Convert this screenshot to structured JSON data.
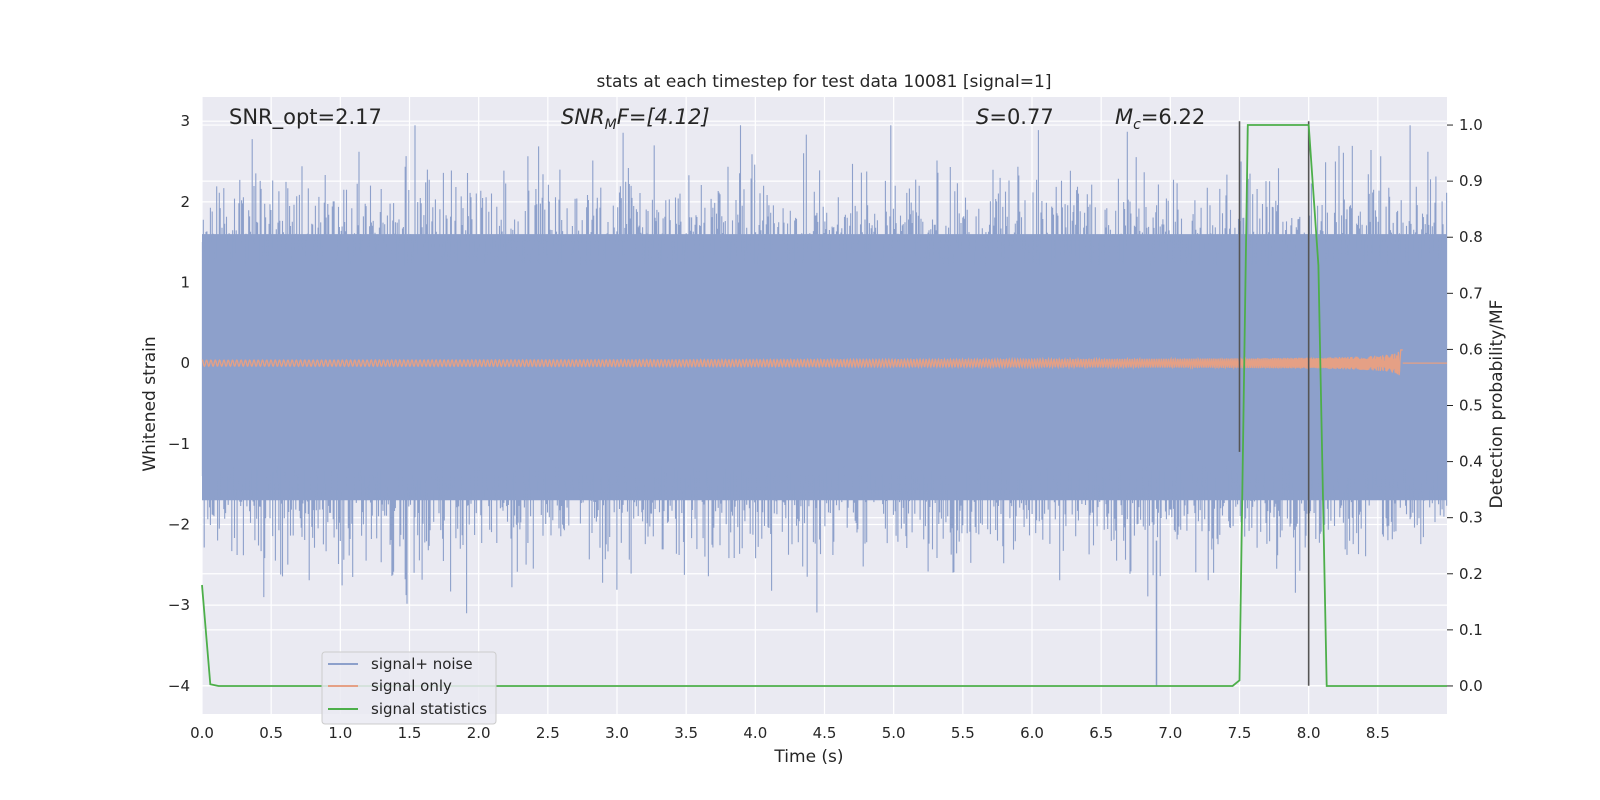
{
  "chart_data": {
    "type": "line",
    "title": "stats at each timestep for test data 10081 [signal=1]",
    "xlabel": "Time (s)",
    "ylabel_left": "Whitened strain",
    "ylabel_right": "Detection probability/MF",
    "xlim": [
      0.0,
      9.0
    ],
    "ylim_left": [
      -4.35,
      3.3
    ],
    "ylim_right": [
      -0.05,
      1.05
    ],
    "xticks": [
      "0.0",
      "0.5",
      "1.0",
      "1.5",
      "2.0",
      "2.5",
      "3.0",
      "3.5",
      "4.0",
      "4.5",
      "5.0",
      "5.5",
      "6.0",
      "6.5",
      "7.0",
      "7.5",
      "8.0",
      "8.5"
    ],
    "yticks_left": [
      "3",
      "2",
      "1",
      "0",
      "−1",
      "−2",
      "−3",
      "−4"
    ],
    "yticks_right": [
      "1.0",
      "0.9",
      "0.8",
      "0.7",
      "0.6",
      "0.5",
      "0.4",
      "0.3",
      "0.2",
      "0.1",
      "0.0"
    ],
    "grid": true,
    "legend_position": "lower-left",
    "annotations": {
      "snr_opt": "SNR_opt=2.17",
      "snr_mf_prefix": "SNR",
      "snr_mf_sub": "M",
      "snr_mf_suffix": "F=[4.12]",
      "s_var": "S",
      "s_val": "=0.77",
      "mc_var": "M",
      "mc_sub": "c",
      "mc_val": "=6.22"
    },
    "series": [
      {
        "name": "signal+ noise",
        "color": "#8da0cb",
        "description_of_shape": "dense noise between roughly -2.5 and 2.6 whitened strain across 0-9 s",
        "envelope": {
          "upper_typical": 1.6,
          "upper_peak": 2.95,
          "lower_typical": -1.7,
          "lower_peak": -3.1,
          "dips_to": -4.0,
          "dip_time": 6.9
        }
      },
      {
        "name": "signal only",
        "color": "#e5a085",
        "description_of_shape": "chirp centred at 0 growing in amplitude until ~8.7 s",
        "chirp_end_time": 8.68,
        "chirp_peak_amplitude": 0.2
      },
      {
        "name": "signal statistics",
        "color": "#4daf4a",
        "axis": "right",
        "x": [
          0.0,
          0.06,
          0.12,
          7.45,
          7.5,
          7.56,
          8.0,
          8.07,
          8.13,
          8.16,
          9.0
        ],
        "y": [
          0.18,
          0.003,
          0.0,
          0.0,
          0.01,
          1.0,
          1.0,
          0.75,
          0.0,
          0.0,
          0.0
        ]
      }
    ],
    "vertical_markers": [
      {
        "x": 7.5,
        "color": "#555555",
        "y_top_left": 3.0,
        "y_bottom_left": -1.1
      },
      {
        "x": 8.0,
        "color": "#555555",
        "y_top_left": 3.0,
        "y_bottom_left": -4.0
      }
    ]
  }
}
